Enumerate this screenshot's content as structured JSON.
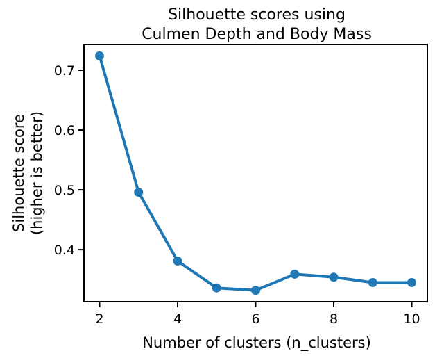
{
  "chart_data": {
    "type": "line",
    "title_lines": [
      "Silhouette scores using",
      "Culmen Depth and Body Mass"
    ],
    "xlabel": "Number of clusters (n_clusters)",
    "ylabel_lines": [
      "Silhouette score",
      "(higher is better)"
    ],
    "x": [
      2,
      3,
      4,
      5,
      6,
      7,
      8,
      9,
      10
    ],
    "y": [
      0.724,
      0.496,
      0.381,
      0.336,
      0.332,
      0.359,
      0.354,
      0.345,
      0.345
    ],
    "xlim": [
      1.6,
      10.4
    ],
    "ylim": [
      0.313,
      0.743
    ],
    "xticks": [
      "2",
      "4",
      "6",
      "8",
      "10"
    ],
    "yticks": [
      "0.4",
      "0.5",
      "0.6",
      "0.7"
    ],
    "grid": false,
    "color": "#1f77b4"
  }
}
